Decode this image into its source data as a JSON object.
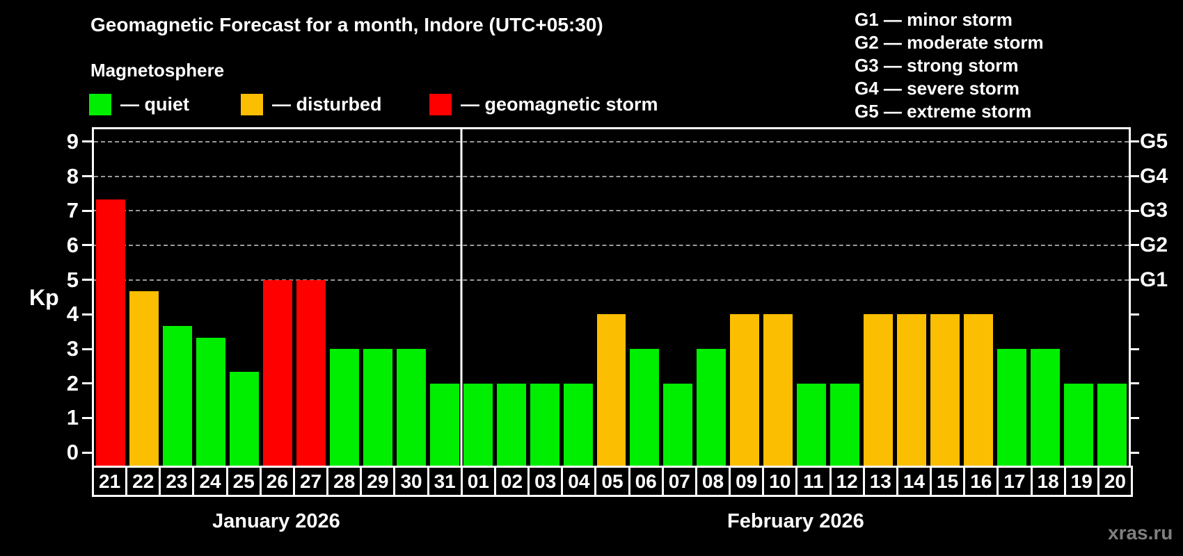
{
  "header": {
    "title": "Geomagnetic Forecast for a month, Indore (UTC+05:30)",
    "subtitle": "Magnetosphere"
  },
  "legend": {
    "items": [
      {
        "key": "quiet",
        "label": "— quiet",
        "color": "#00ee00"
      },
      {
        "key": "disturbed",
        "label": "— disturbed",
        "color": "#fcbe00"
      },
      {
        "key": "storm",
        "label": "— geomagnetic storm",
        "color": "#ff0000"
      }
    ]
  },
  "g_scale_legend": [
    "G1 — minor storm",
    "G2 — moderate storm",
    "G3 — strong storm",
    "G4 — severe storm",
    "G5 — extreme storm"
  ],
  "watermark": "xras.ru",
  "chart_data": {
    "type": "bar",
    "title": "Geomagnetic Forecast for a month, Indore (UTC+05:30)",
    "ylabel": "Kp",
    "ylim": [
      -0.38,
      9.36
    ],
    "yticks": [
      0,
      1,
      2,
      3,
      4,
      5,
      6,
      7,
      8,
      9
    ],
    "grid_levels": [
      5,
      6,
      7,
      8,
      9
    ],
    "grid_style": "dashed",
    "right_axis_labels": [
      {
        "kp": 5,
        "label": "G1"
      },
      {
        "kp": 6,
        "label": "G2"
      },
      {
        "kp": 7,
        "label": "G3"
      },
      {
        "kp": 8,
        "label": "G4"
      },
      {
        "kp": 9,
        "label": "G5"
      }
    ],
    "level_colors": {
      "quiet": "#00ee00",
      "disturbed": "#fcbe00",
      "storm": "#ff0000"
    },
    "months": [
      {
        "label": "January 2026",
        "days": 11
      },
      {
        "label": "February 2026",
        "days": 20
      }
    ],
    "categories": [
      "21",
      "22",
      "23",
      "24",
      "25",
      "26",
      "27",
      "28",
      "29",
      "30",
      "31",
      "01",
      "02",
      "03",
      "04",
      "05",
      "06",
      "07",
      "08",
      "09",
      "10",
      "11",
      "12",
      "13",
      "14",
      "15",
      "16",
      "17",
      "18",
      "19",
      "20"
    ],
    "values": [
      7.33,
      4.67,
      3.67,
      3.33,
      2.33,
      5,
      5,
      3,
      3,
      3,
      2,
      2,
      2,
      2,
      2,
      4,
      3,
      2,
      3,
      4,
      4,
      2,
      2,
      4,
      4,
      4,
      4,
      3,
      3,
      2,
      2
    ],
    "levels": [
      "storm",
      "disturbed",
      "quiet",
      "quiet",
      "quiet",
      "storm",
      "storm",
      "quiet",
      "quiet",
      "quiet",
      "quiet",
      "quiet",
      "quiet",
      "quiet",
      "quiet",
      "disturbed",
      "quiet",
      "quiet",
      "quiet",
      "disturbed",
      "disturbed",
      "quiet",
      "quiet",
      "disturbed",
      "disturbed",
      "disturbed",
      "disturbed",
      "quiet",
      "quiet",
      "quiet",
      "quiet"
    ]
  }
}
